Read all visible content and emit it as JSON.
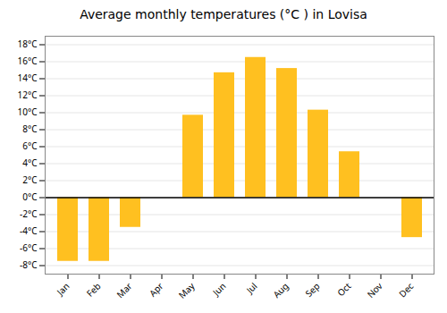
{
  "chart_data": {
    "type": "bar",
    "title": "Average monthly temperatures (°C ) in Lovisa",
    "categories": [
      "Jan",
      "Feb",
      "Mar",
      "Apr",
      "May",
      "Jun",
      "Jul",
      "Aug",
      "Sep",
      "Oct",
      "Nov",
      "Dec"
    ],
    "values": [
      -7.5,
      -7.5,
      -3.5,
      0.0,
      9.7,
      14.7,
      16.5,
      15.2,
      10.3,
      5.4,
      0.0,
      -4.7
    ],
    "color": "#FFC020",
    "ylim": [
      -9,
      19
    ],
    "yticks": [
      {
        "value": -8,
        "label": "-8°C"
      },
      {
        "value": -6,
        "label": "-6°C"
      },
      {
        "value": -4,
        "label": "-4°C"
      },
      {
        "value": -2,
        "label": "-2°C"
      },
      {
        "value": 0,
        "label": "0°C"
      },
      {
        "value": 2,
        "label": "2°C"
      },
      {
        "value": 4,
        "label": "4°C"
      },
      {
        "value": 6,
        "label": "6°C"
      },
      {
        "value": 8,
        "label": "8°C"
      },
      {
        "value": 10,
        "label": "10°C"
      },
      {
        "value": 12,
        "label": "12°C"
      },
      {
        "value": 14,
        "label": "14°C"
      },
      {
        "value": 16,
        "label": "16°C"
      },
      {
        "value": 18,
        "label": "18°C"
      }
    ],
    "grid": true
  }
}
